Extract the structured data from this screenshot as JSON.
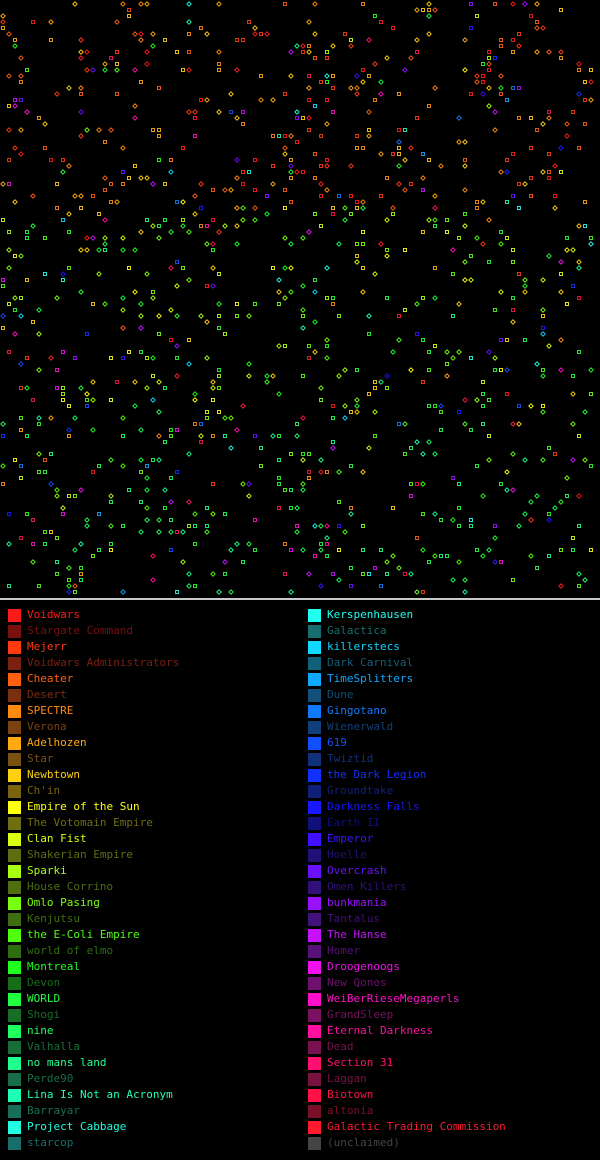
{
  "map": {
    "background": "#000000",
    "star_symbols": [
      "diamond",
      "square"
    ]
  },
  "legend": {
    "left": [
      {
        "name": "Voidwars",
        "color": "#ff1a1a",
        "active": true
      },
      {
        "name": "Stargate Command",
        "color": "#7a1010",
        "active": false
      },
      {
        "name": "Mejerr",
        "color": "#ff3a10",
        "active": true
      },
      {
        "name": "Voidwars Administrators",
        "color": "#7a2010",
        "active": false
      },
      {
        "name": "Cheater",
        "color": "#ff6010",
        "active": true
      },
      {
        "name": "Desert",
        "color": "#7a3010",
        "active": false
      },
      {
        "name": "SPECTRE",
        "color": "#ff8a10",
        "active": true
      },
      {
        "name": "Verona",
        "color": "#7a4210",
        "active": false
      },
      {
        "name": "Adelhozen",
        "color": "#ffaa10",
        "active": true
      },
      {
        "name": "Star",
        "color": "#7a5210",
        "active": false
      },
      {
        "name": "Newbtown",
        "color": "#ffd010",
        "active": true
      },
      {
        "name": "Ch'in",
        "color": "#7a6410",
        "active": false
      },
      {
        "name": "Empire of the Sun",
        "color": "#ffff10",
        "active": true
      },
      {
        "name": "The Votomain Empire",
        "color": "#6e6e10",
        "active": false
      },
      {
        "name": "Clan Fist",
        "color": "#d8ff10",
        "active": true
      },
      {
        "name": "Shakerian Empire",
        "color": "#5c6e10",
        "active": false
      },
      {
        "name": "Sparki",
        "color": "#a8ff10",
        "active": true
      },
      {
        "name": "House Corrino",
        "color": "#4e6e10",
        "active": false
      },
      {
        "name": "Omlo Pasing",
        "color": "#7aff10",
        "active": true
      },
      {
        "name": "Kenjutsu",
        "color": "#3e6e10",
        "active": false
      },
      {
        "name": "the E-Coli Empire",
        "color": "#50ff10",
        "active": true
      },
      {
        "name": "world of elmo",
        "color": "#2e6e10",
        "active": false
      },
      {
        "name": "Montreal",
        "color": "#20ff20",
        "active": true
      },
      {
        "name": "Devon",
        "color": "#186e18",
        "active": false
      },
      {
        "name": "WORLD",
        "color": "#20ff40",
        "active": true
      },
      {
        "name": "Shogi",
        "color": "#186e28",
        "active": false
      },
      {
        "name": "nine",
        "color": "#20ff60",
        "active": true
      },
      {
        "name": "Valhalla",
        "color": "#186e38",
        "active": false
      },
      {
        "name": "no mans land",
        "color": "#20ff90",
        "active": true
      },
      {
        "name": "Perde90",
        "color": "#186e48",
        "active": false
      },
      {
        "name": "Lina Is Not an Acronym",
        "color": "#20ffb8",
        "active": true
      },
      {
        "name": "Barrayar",
        "color": "#186e58",
        "active": false
      },
      {
        "name": "Project Cabbage",
        "color": "#20ffe0",
        "active": true
      },
      {
        "name": "starcop",
        "color": "#186e68",
        "active": false
      }
    ],
    "right": [
      {
        "name": "Kerspenhausen",
        "color": "#20fff0",
        "active": true
      },
      {
        "name": "Galactica",
        "color": "#186e6e",
        "active": false
      },
      {
        "name": "killerstecs",
        "color": "#10d8ff",
        "active": true
      },
      {
        "name": "Dark Carnival",
        "color": "#10607a",
        "active": false
      },
      {
        "name": "TimeSplitters",
        "color": "#10a8ff",
        "active": true
      },
      {
        "name": "Dune",
        "color": "#10507a",
        "active": false
      },
      {
        "name": "Gingotano",
        "color": "#107aff",
        "active": true
      },
      {
        "name": "Wienerwald",
        "color": "#10407a",
        "active": false
      },
      {
        "name": "619",
        "color": "#1050ff",
        "active": true
      },
      {
        "name": "Twiztid",
        "color": "#10307a",
        "active": false
      },
      {
        "name": "the Dark Legion",
        "color": "#1030ff",
        "active": true
      },
      {
        "name": "Groundtake",
        "color": "#10207a",
        "active": false
      },
      {
        "name": "Darkness Falls",
        "color": "#1818ff",
        "active": true
      },
      {
        "name": "Earth II",
        "color": "#10107a",
        "active": false
      },
      {
        "name": "Emperor",
        "color": "#4010ff",
        "active": true
      },
      {
        "name": "Hoelle",
        "color": "#20107a",
        "active": false
      },
      {
        "name": "Overcrash",
        "color": "#6a10ff",
        "active": true
      },
      {
        "name": "Omen Killers",
        "color": "#32107a",
        "active": false
      },
      {
        "name": "bunkmania",
        "color": "#9a10ff",
        "active": true
      },
      {
        "name": "Tantalus",
        "color": "#44107a",
        "active": false
      },
      {
        "name": "The Hanse",
        "color": "#c810ff",
        "active": true
      },
      {
        "name": "Homer",
        "color": "#58107a",
        "active": false
      },
      {
        "name": "Droogenoogs",
        "color": "#f010f0",
        "active": true
      },
      {
        "name": "New Qonos",
        "color": "#6e106e",
        "active": false
      },
      {
        "name": "WeiBerRieseMegaperls",
        "color": "#ff10c8",
        "active": true
      },
      {
        "name": "GrandSleep",
        "color": "#7a1060",
        "active": false
      },
      {
        "name": "Eternal Darkness",
        "color": "#ff10a0",
        "active": true
      },
      {
        "name": "Dead",
        "color": "#7a1050",
        "active": false
      },
      {
        "name": "Section 31",
        "color": "#ff1070",
        "active": true
      },
      {
        "name": "Laggan",
        "color": "#7a1040",
        "active": false
      },
      {
        "name": "Biotown",
        "color": "#ff1048",
        "active": true
      },
      {
        "name": "altonia",
        "color": "#7a1028",
        "active": false
      },
      {
        "name": "Galactic Trading Commission",
        "color": "#ff1a30",
        "active": true
      },
      {
        "name": "(unclaimed)",
        "color": "#444444",
        "active": false
      }
    ]
  }
}
